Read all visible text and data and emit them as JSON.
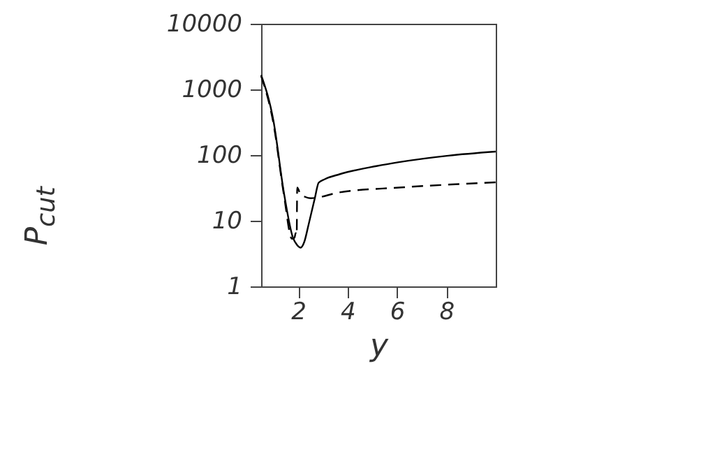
{
  "chart_data": {
    "type": "line",
    "xlabel": "y",
    "ylabel": "P$_{cut}$",
    "log": "y",
    "grid": false,
    "xlim": [
      0.5,
      10
    ],
    "xticks": [
      2,
      4,
      6,
      8
    ],
    "ylim": [
      1,
      10000
    ],
    "yticks": [
      1,
      10,
      100,
      1000,
      10000
    ],
    "series": [
      {
        "color": "#000000",
        "line_style": "solid",
        "x": [
          0.5,
          1.0,
          1.42,
          1.79,
          1.95,
          2.1,
          2.25,
          2.42,
          2.67,
          2.83,
          3.08,
          3.67,
          5.17,
          6.08,
          8.08,
          10.0
        ],
        "values": [
          1660,
          330,
          27,
          5.5,
          4.3,
          3.9,
          4.8,
          8.7,
          21.7,
          38,
          43,
          51,
          68,
          78,
          98,
          113
        ]
      },
      {
        "color": "#000000",
        "line_style": "dashed",
        "x": [
          0.5,
          1.0,
          1.42,
          1.75,
          1.85,
          1.9,
          1.94,
          1.96,
          2.1,
          2.29,
          2.5,
          3.67,
          6.08,
          8.08,
          10.0
        ],
        "values": [
          1600,
          300,
          25,
          5.3,
          5.5,
          6.5,
          6,
          32,
          25,
          23,
          22,
          27,
          32,
          35.5,
          38.5
        ]
      }
    ]
  }
}
